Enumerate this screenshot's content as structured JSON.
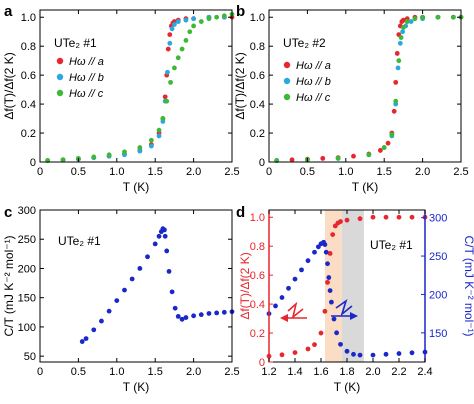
{
  "figure": {
    "panels": [
      "a",
      "b",
      "c",
      "d"
    ]
  },
  "chart_data": [
    {
      "panel": "a",
      "type": "scatter",
      "sample_label": "UTe₂ #1",
      "xlabel": "T (K)",
      "ylabel": "Δf(T)/Δf(2 K)",
      "xlim": [
        0,
        2.5
      ],
      "ylim": [
        0,
        1.05
      ],
      "xticks": [
        "0",
        "0.5",
        "1.0",
        "1.5",
        "2.0",
        "2.5"
      ],
      "yticks": [
        "0",
        "0.2",
        "0.4",
        "0.6",
        "0.8",
        "1.0"
      ],
      "legend_position": "upper-left",
      "series": [
        {
          "name": "Hω // a",
          "color": "#e8262d",
          "x": [
            0.1,
            0.3,
            0.5,
            0.7,
            0.9,
            1.1,
            1.3,
            1.45,
            1.55,
            1.6,
            1.63,
            1.65,
            1.67,
            1.69,
            1.71,
            1.73,
            1.75,
            1.8,
            1.9,
            2.0,
            2.2,
            2.4,
            2.5
          ],
          "y": [
            0.01,
            0.015,
            0.02,
            0.03,
            0.04,
            0.055,
            0.08,
            0.12,
            0.2,
            0.3,
            0.45,
            0.6,
            0.78,
            0.88,
            0.94,
            0.96,
            0.97,
            0.98,
            0.99,
            0.99,
            1.0,
            1.0,
            1.0
          ]
        },
        {
          "name": "Hω // b",
          "color": "#2aa8e0",
          "x": [
            0.1,
            0.3,
            0.5,
            0.7,
            0.9,
            1.1,
            1.3,
            1.45,
            1.55,
            1.6,
            1.63,
            1.66,
            1.69,
            1.72,
            1.75,
            1.8,
            1.9,
            2.0,
            2.2,
            2.4
          ],
          "y": [
            0.01,
            0.015,
            0.02,
            0.03,
            0.04,
            0.05,
            0.075,
            0.11,
            0.18,
            0.28,
            0.42,
            0.62,
            0.82,
            0.92,
            0.95,
            0.97,
            0.98,
            0.99,
            1.0,
            1.0
          ]
        },
        {
          "name": "Hω // c",
          "color": "#3cb935",
          "x": [
            0.1,
            0.3,
            0.5,
            0.7,
            0.9,
            1.1,
            1.3,
            1.45,
            1.55,
            1.6,
            1.65,
            1.7,
            1.75,
            1.8,
            1.85,
            1.9,
            1.95,
            2.0,
            2.1,
            2.2,
            2.3,
            2.4,
            2.5
          ],
          "y": [
            0.01,
            0.015,
            0.025,
            0.035,
            0.05,
            0.07,
            0.1,
            0.15,
            0.22,
            0.3,
            0.42,
            0.55,
            0.65,
            0.72,
            0.78,
            0.84,
            0.9,
            0.94,
            0.97,
            0.99,
            1.0,
            1.01,
            1.02
          ]
        }
      ]
    },
    {
      "panel": "b",
      "type": "scatter",
      "sample_label": "UTe₂ #2",
      "xlabel": "T (K)",
      "ylabel": "Δf(T)/Δf(2 K)",
      "xlim": [
        0,
        2.5
      ],
      "ylim": [
        0,
        1.05
      ],
      "xticks": [
        "0",
        "0.5",
        "1.0",
        "1.5",
        "2.0",
        "2.5"
      ],
      "yticks": [
        "0",
        "0.2",
        "0.4",
        "0.6",
        "0.8",
        "1.0"
      ],
      "legend_position": "center-left",
      "series": [
        {
          "name": "Hω // a",
          "color": "#e8262d",
          "x": [
            0.1,
            0.3,
            0.5,
            0.7,
            0.9,
            1.1,
            1.3,
            1.45,
            1.55,
            1.6,
            1.63,
            1.65,
            1.67,
            1.69,
            1.71,
            1.73,
            1.75,
            1.8,
            1.9,
            2.0,
            2.2,
            2.4,
            2.5
          ],
          "y": [
            0.01,
            0.015,
            0.02,
            0.025,
            0.03,
            0.04,
            0.055,
            0.08,
            0.13,
            0.2,
            0.35,
            0.55,
            0.75,
            0.88,
            0.94,
            0.97,
            0.98,
            0.99,
            1.0,
            1.0,
            1.0,
            1.0,
            1.0
          ]
        },
        {
          "name": "Hω // b",
          "color": "#2aa8e0",
          "x": [
            0.1,
            0.5,
            0.9,
            1.3,
            1.5,
            1.6,
            1.65,
            1.68,
            1.71,
            1.74,
            1.78,
            1.85,
            2.0,
            2.2,
            2.4
          ],
          "y": [
            0.01,
            0.015,
            0.025,
            0.05,
            0.1,
            0.18,
            0.4,
            0.65,
            0.82,
            0.9,
            0.94,
            0.97,
            0.99,
            1.0,
            1.0
          ]
        },
        {
          "name": "Hω // c",
          "color": "#3cb935",
          "x": [
            0.1,
            0.5,
            0.9,
            1.3,
            1.5,
            1.6,
            1.65,
            1.69,
            1.72,
            1.75,
            1.8,
            1.9,
            2.0,
            2.2,
            2.4,
            2.5
          ],
          "y": [
            0.01,
            0.015,
            0.025,
            0.05,
            0.1,
            0.19,
            0.42,
            0.7,
            0.86,
            0.93,
            0.97,
            0.99,
            1.0,
            1.0,
            1.0,
            1.0
          ]
        }
      ]
    },
    {
      "panel": "c",
      "type": "scatter",
      "sample_label": "UTe₂ #1",
      "xlabel": "T (K)",
      "ylabel": "C/T (mJ K⁻² mol⁻¹)",
      "xlim": [
        0,
        2.5
      ],
      "ylim": [
        40,
        300
      ],
      "xticks": [
        "0",
        "0.5",
        "1.0",
        "1.5",
        "2.0",
        "2.5"
      ],
      "yticks": [
        "50",
        "100",
        "150",
        "200",
        "250",
        "300"
      ],
      "series": [
        {
          "name": "",
          "color": "#1a27c9",
          "x": [
            0.55,
            0.6,
            0.7,
            0.8,
            0.9,
            1.0,
            1.1,
            1.2,
            1.3,
            1.4,
            1.5,
            1.55,
            1.58,
            1.6,
            1.62,
            1.63,
            1.65,
            1.68,
            1.72,
            1.76,
            1.8,
            1.85,
            1.9,
            2.0,
            2.1,
            2.2,
            2.3,
            2.4,
            2.5
          ],
          "y": [
            75,
            80,
            95,
            110,
            127,
            145,
            163,
            182,
            200,
            220,
            242,
            255,
            263,
            268,
            266,
            255,
            230,
            195,
            160,
            132,
            118,
            113,
            116,
            119,
            121,
            123,
            124,
            125,
            126
          ]
        }
      ]
    },
    {
      "panel": "d",
      "type": "scatter",
      "sample_label": "UTe₂ #1",
      "xlabel": "T (K)",
      "ylabel_left": "Δf(T)/Δf(2 K)",
      "ylabel_right": "C/T (mJ K⁻² mol⁻¹)",
      "xlim": [
        1.2,
        2.4
      ],
      "ylim_left": [
        0,
        1.05
      ],
      "ylim_right": [
        112,
        310
      ],
      "xticks": [
        "1.2",
        "1.4",
        "1.6",
        "1.8",
        "2.0",
        "2.2",
        "2.4"
      ],
      "yticks_left": [
        "0",
        "0.2",
        "0.4",
        "0.6",
        "0.8",
        "1.0"
      ],
      "yticks_right": [
        "150",
        "200",
        "250",
        "300"
      ],
      "shaded_bands": [
        {
          "x0": 1.63,
          "x1": 1.76,
          "color": "#fbdcc4"
        },
        {
          "x0": 1.76,
          "x1": 1.93,
          "color": "#d9d9d9"
        }
      ],
      "series": [
        {
          "name": "Δf(T)/Δf(2 K)",
          "axis": "left",
          "color": "#e8262d",
          "x": [
            1.2,
            1.3,
            1.4,
            1.5,
            1.55,
            1.6,
            1.63,
            1.65,
            1.67,
            1.69,
            1.71,
            1.73,
            1.75,
            1.8,
            1.9,
            2.0,
            2.1,
            2.2,
            2.3,
            2.4
          ],
          "y": [
            0.04,
            0.05,
            0.065,
            0.09,
            0.12,
            0.2,
            0.35,
            0.55,
            0.75,
            0.88,
            0.94,
            0.96,
            0.97,
            0.98,
            0.99,
            1.0,
            1.0,
            1.0,
            1.0,
            1.0
          ]
        },
        {
          "name": "C/T",
          "axis": "right",
          "color": "#1a27c9",
          "x": [
            1.2,
            1.25,
            1.3,
            1.35,
            1.4,
            1.45,
            1.5,
            1.55,
            1.58,
            1.6,
            1.62,
            1.63,
            1.64,
            1.65,
            1.66,
            1.67,
            1.68,
            1.7,
            1.72,
            1.75,
            1.8,
            1.85,
            1.9,
            2.0,
            2.1,
            2.2,
            2.3,
            2.4
          ],
          "y": [
            175,
            185,
            196,
            208,
            220,
            232,
            244,
            255,
            262,
            266,
            268,
            265,
            255,
            240,
            222,
            205,
            190,
            168,
            150,
            135,
            126,
            122,
            121,
            121,
            122,
            123,
            124,
            125
          ]
        }
      ]
    }
  ]
}
